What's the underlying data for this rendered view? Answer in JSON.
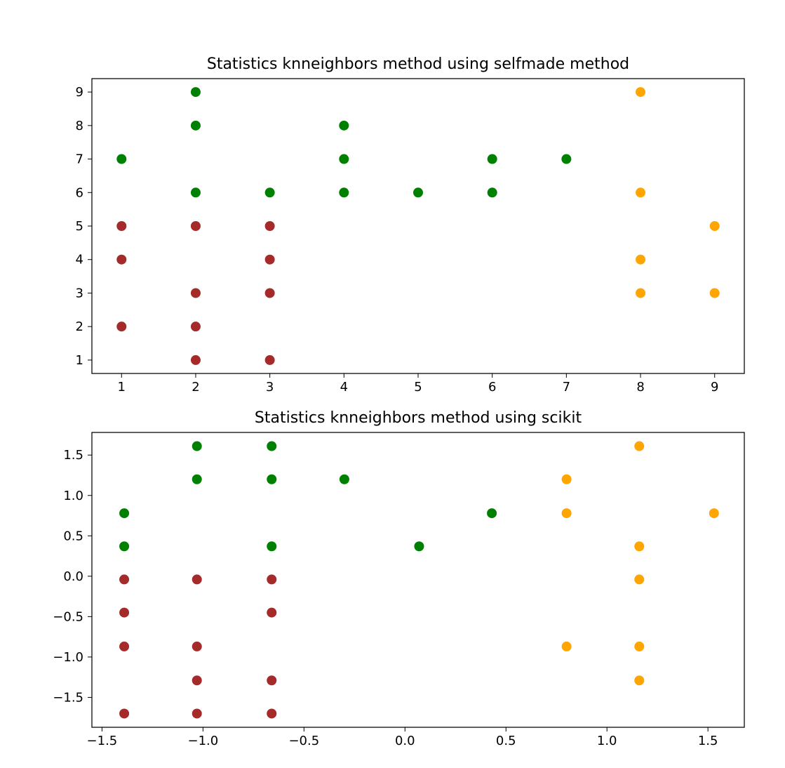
{
  "colors": {
    "green": "#008000",
    "brown": "#a52a2a",
    "orange": "#ffa500"
  },
  "chart_data": [
    {
      "type": "scatter",
      "title": "Statistics knneighbors method using selfmade method",
      "xlabel": "",
      "ylabel": "",
      "xlim": [
        0.6,
        9.4
      ],
      "ylim": [
        0.6,
        9.4
      ],
      "xticks": [
        1,
        2,
        3,
        4,
        5,
        6,
        7,
        8,
        9
      ],
      "yticks": [
        1,
        2,
        3,
        4,
        5,
        6,
        7,
        8,
        9
      ],
      "xtick_labels": [
        "1",
        "2",
        "3",
        "4",
        "5",
        "6",
        "7",
        "8",
        "9"
      ],
      "ytick_labels": [
        "1",
        "2",
        "3",
        "4",
        "5",
        "6",
        "7",
        "8",
        "9"
      ],
      "grid": false,
      "series": [
        {
          "color": "green",
          "points": [
            [
              1,
              7
            ],
            [
              2,
              9
            ],
            [
              2,
              8
            ],
            [
              2,
              6
            ],
            [
              3,
              6
            ],
            [
              4,
              8
            ],
            [
              4,
              7
            ],
            [
              4,
              6
            ],
            [
              5,
              6
            ],
            [
              6,
              7
            ],
            [
              6,
              6
            ],
            [
              7,
              7
            ]
          ]
        },
        {
          "color": "brown",
          "points": [
            [
              1,
              5
            ],
            [
              1,
              4
            ],
            [
              1,
              2
            ],
            [
              2,
              5
            ],
            [
              2,
              3
            ],
            [
              2,
              2
            ],
            [
              2,
              1
            ],
            [
              3,
              5
            ],
            [
              3,
              4
            ],
            [
              3,
              3
            ],
            [
              3,
              1
            ]
          ]
        },
        {
          "color": "orange",
          "points": [
            [
              8,
              9
            ],
            [
              8,
              6
            ],
            [
              8,
              4
            ],
            [
              8,
              3
            ],
            [
              9,
              5
            ],
            [
              9,
              3
            ]
          ]
        }
      ]
    },
    {
      "type": "scatter",
      "title": "Statistics knneighbors method using scikit",
      "xlabel": "",
      "ylabel": "",
      "xlim": [
        -1.55,
        1.68
      ],
      "ylim": [
        -1.87,
        1.78
      ],
      "xticks": [
        -1.5,
        -1.0,
        -0.5,
        0.0,
        0.5,
        1.0,
        1.5
      ],
      "yticks": [
        -1.5,
        -1.0,
        -0.5,
        0.0,
        0.5,
        1.0,
        1.5
      ],
      "xtick_labels": [
        "−1.5",
        "−1.0",
        "−0.5",
        "0.0",
        "0.5",
        "1.0",
        "1.5"
      ],
      "ytick_labels": [
        "−1.5",
        "−1.0",
        "−0.5",
        "0.0",
        "0.5",
        "1.0",
        "1.5"
      ],
      "grid": false,
      "series": [
        {
          "color": "green",
          "points": [
            [
              -1.39,
              0.78
            ],
            [
              -1.39,
              0.37
            ],
            [
              -1.03,
              1.61
            ],
            [
              -1.03,
              1.2
            ],
            [
              -0.66,
              1.61
            ],
            [
              -0.66,
              1.2
            ],
            [
              -0.66,
              0.37
            ],
            [
              -0.3,
              1.2
            ],
            [
              0.07,
              0.37
            ],
            [
              0.43,
              0.78
            ]
          ]
        },
        {
          "color": "brown",
          "points": [
            [
              -1.39,
              -0.04
            ],
            [
              -1.39,
              -0.45
            ],
            [
              -1.39,
              -0.87
            ],
            [
              -1.39,
              -1.7
            ],
            [
              -1.03,
              -0.04
            ],
            [
              -1.03,
              -0.87
            ],
            [
              -1.03,
              -1.29
            ],
            [
              -1.03,
              -1.7
            ],
            [
              -0.66,
              -0.04
            ],
            [
              -0.66,
              -0.45
            ],
            [
              -0.66,
              -1.29
            ],
            [
              -0.66,
              -1.7
            ]
          ]
        },
        {
          "color": "orange",
          "points": [
            [
              0.8,
              1.2
            ],
            [
              0.8,
              0.78
            ],
            [
              0.8,
              -0.87
            ],
            [
              1.16,
              1.61
            ],
            [
              1.16,
              0.37
            ],
            [
              1.16,
              -0.04
            ],
            [
              1.16,
              -0.87
            ],
            [
              1.16,
              -1.29
            ],
            [
              1.53,
              0.78
            ]
          ]
        }
      ]
    }
  ]
}
